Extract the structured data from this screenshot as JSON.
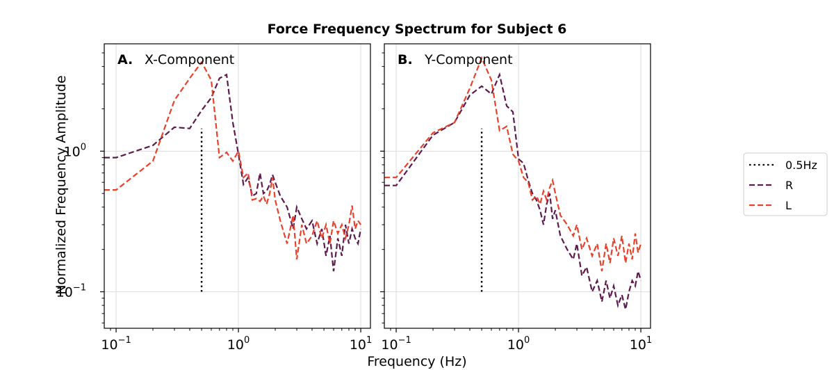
{
  "figure_title": "Force Frequency Spectrum for Subject 6",
  "xlabel": "Frequency (Hz)",
  "ylabel": "Normalized Frequency Amplitude",
  "legend": {
    "placement": "outside-right",
    "entries": [
      {
        "label": "0.5Hz",
        "style": "dotted",
        "color": "#000000"
      },
      {
        "label": "R",
        "style": "dashed",
        "color": "#5c1a4e"
      },
      {
        "label": "L",
        "style": "dashed",
        "color": "#e8412b"
      }
    ]
  },
  "colors": {
    "R": "#5c1a4e",
    "L": "#e8412b",
    "marker": "#000000",
    "grid": "#dddddd"
  },
  "chart_data": [
    {
      "type": "line",
      "panel_letter": "A.",
      "panel_name": "X-Component",
      "x_scale": "log",
      "y_scale": "log",
      "xlim": [
        0.08,
        12
      ],
      "ylim": [
        0.055,
        5.8
      ],
      "xticks": [
        {
          "value": 0.1,
          "base": "10",
          "exp": "−1"
        },
        {
          "value": 1,
          "base": "10",
          "exp": "0"
        },
        {
          "value": 10,
          "base": "10",
          "exp": "1"
        }
      ],
      "yticks": [
        {
          "value": 0.1,
          "base": "10",
          "exp": "−1"
        },
        {
          "value": 1,
          "base": "10",
          "exp": "0"
        }
      ],
      "show_ytick_labels": true,
      "grid": true,
      "marker_line": {
        "name": "0.5Hz",
        "x": 0.5,
        "y": [
          0.1,
          1.45
        ]
      },
      "series": [
        {
          "name": "R",
          "x": [
            0.08,
            0.1,
            0.2,
            0.3,
            0.4,
            0.5,
            0.6,
            0.7,
            0.8,
            0.9,
            1.0,
            1.1,
            1.2,
            1.3,
            1.4,
            1.5,
            1.6,
            1.7,
            1.8,
            1.9,
            2.0,
            2.2,
            2.5,
            2.8,
            3.0,
            3.3,
            3.6,
            4.0,
            4.4,
            4.8,
            5.2,
            5.6,
            6.0,
            6.5,
            7.0,
            7.5,
            8.0,
            8.5,
            9.0,
            9.5,
            10.0
          ],
          "values": [
            0.9,
            0.9,
            1.1,
            1.48,
            1.45,
            1.95,
            2.4,
            3.3,
            3.5,
            1.6,
            0.95,
            0.58,
            0.65,
            0.48,
            0.5,
            0.7,
            0.5,
            0.52,
            0.58,
            0.68,
            0.6,
            0.48,
            0.4,
            0.28,
            0.4,
            0.33,
            0.28,
            0.32,
            0.22,
            0.28,
            0.18,
            0.25,
            0.14,
            0.24,
            0.18,
            0.3,
            0.22,
            0.28,
            0.24,
            0.22,
            0.28
          ]
        },
        {
          "name": "L",
          "x": [
            0.08,
            0.1,
            0.2,
            0.3,
            0.4,
            0.5,
            0.6,
            0.7,
            0.8,
            0.9,
            1.0,
            1.1,
            1.2,
            1.3,
            1.4,
            1.5,
            1.6,
            1.7,
            1.8,
            1.9,
            2.0,
            2.2,
            2.5,
            2.8,
            3.0,
            3.3,
            3.6,
            4.0,
            4.4,
            4.8,
            5.2,
            5.6,
            6.0,
            6.5,
            7.0,
            7.5,
            8.0,
            8.5,
            9.0,
            9.5,
            10.0
          ],
          "values": [
            0.53,
            0.53,
            0.85,
            2.3,
            3.3,
            4.3,
            3.2,
            0.9,
            0.98,
            0.85,
            1.0,
            0.65,
            0.7,
            0.45,
            0.46,
            0.44,
            0.48,
            0.42,
            0.5,
            0.65,
            0.45,
            0.32,
            0.22,
            0.35,
            0.17,
            0.3,
            0.22,
            0.25,
            0.32,
            0.24,
            0.3,
            0.22,
            0.32,
            0.26,
            0.3,
            0.24,
            0.3,
            0.41,
            0.28,
            0.32,
            0.3
          ]
        }
      ]
    },
    {
      "type": "line",
      "panel_letter": "B.",
      "panel_name": "Y-Component",
      "x_scale": "log",
      "y_scale": "log",
      "xlim": [
        0.08,
        12
      ],
      "ylim": [
        0.055,
        5.8
      ],
      "xticks": [
        {
          "value": 0.1,
          "base": "10",
          "exp": "−1"
        },
        {
          "value": 1,
          "base": "10",
          "exp": "0"
        },
        {
          "value": 10,
          "base": "10",
          "exp": "1"
        }
      ],
      "yticks": [
        {
          "value": 0.1,
          "base": "10",
          "exp": "−1"
        },
        {
          "value": 1,
          "base": "10",
          "exp": "0"
        }
      ],
      "show_ytick_labels": false,
      "grid": true,
      "marker_line": {
        "name": "0.5Hz",
        "x": 0.5,
        "y": [
          0.1,
          1.45
        ]
      },
      "series": [
        {
          "name": "R",
          "x": [
            0.08,
            0.1,
            0.2,
            0.3,
            0.4,
            0.5,
            0.6,
            0.7,
            0.8,
            0.9,
            1.0,
            1.1,
            1.2,
            1.3,
            1.4,
            1.5,
            1.6,
            1.7,
            1.8,
            1.9,
            2.0,
            2.2,
            2.5,
            2.8,
            3.0,
            3.3,
            3.6,
            4.0,
            4.4,
            4.8,
            5.2,
            5.6,
            6.0,
            6.5,
            7.0,
            7.5,
            8.0,
            8.5,
            9.0,
            9.5,
            10.0
          ],
          "values": [
            0.57,
            0.57,
            1.3,
            1.6,
            2.5,
            2.9,
            2.55,
            3.5,
            2.1,
            1.9,
            0.88,
            0.82,
            0.62,
            0.5,
            0.45,
            0.38,
            0.3,
            0.42,
            0.5,
            0.33,
            0.38,
            0.25,
            0.2,
            0.17,
            0.22,
            0.13,
            0.15,
            0.1,
            0.12,
            0.085,
            0.12,
            0.09,
            0.11,
            0.08,
            0.095,
            0.075,
            0.1,
            0.12,
            0.11,
            0.14,
            0.12
          ]
        },
        {
          "name": "L",
          "x": [
            0.08,
            0.1,
            0.2,
            0.3,
            0.4,
            0.5,
            0.6,
            0.7,
            0.8,
            0.9,
            1.0,
            1.1,
            1.2,
            1.3,
            1.4,
            1.5,
            1.6,
            1.7,
            1.8,
            1.9,
            2.0,
            2.2,
            2.5,
            2.8,
            3.0,
            3.3,
            3.6,
            4.0,
            4.4,
            4.8,
            5.2,
            5.6,
            6.0,
            6.5,
            7.0,
            7.5,
            8.0,
            8.5,
            9.0,
            9.5,
            10.0
          ],
          "values": [
            0.65,
            0.65,
            1.35,
            1.6,
            2.8,
            4.6,
            3.2,
            1.4,
            1.5,
            0.95,
            0.85,
            0.65,
            0.6,
            0.45,
            0.48,
            0.42,
            0.52,
            0.45,
            0.55,
            0.62,
            0.5,
            0.35,
            0.3,
            0.25,
            0.3,
            0.2,
            0.24,
            0.18,
            0.22,
            0.14,
            0.22,
            0.16,
            0.24,
            0.18,
            0.25,
            0.16,
            0.22,
            0.17,
            0.26,
            0.19,
            0.22
          ]
        }
      ]
    }
  ]
}
